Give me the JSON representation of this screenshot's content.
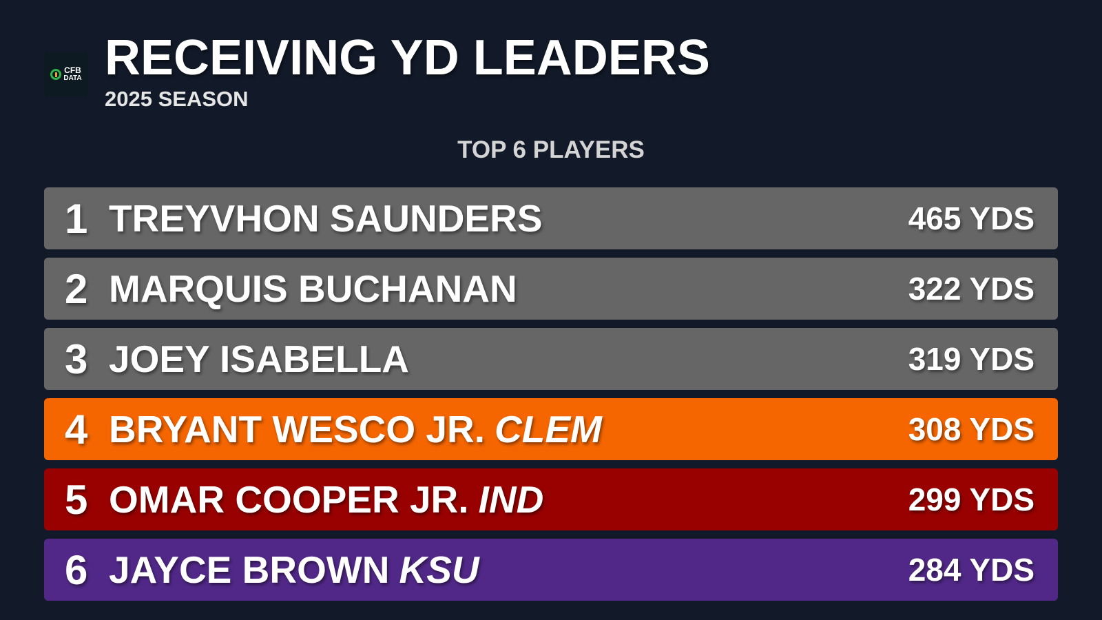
{
  "header": {
    "logo_text_line1": "CFB",
    "logo_text_line2": "DATA",
    "title": "RECEIVING YD LEADERS",
    "subtitle": "2025 SEASON"
  },
  "section_label": "TOP 6 PLAYERS",
  "players": [
    {
      "rank": "1",
      "name": "TREYVHON SAUNDERS",
      "team": "",
      "value": "465 YDS",
      "color": "#666666"
    },
    {
      "rank": "2",
      "name": "MARQUIS BUCHANAN",
      "team": "",
      "value": "322 YDS",
      "color": "#666666"
    },
    {
      "rank": "3",
      "name": "JOEY ISABELLA",
      "team": "",
      "value": "319 YDS",
      "color": "#666666"
    },
    {
      "rank": "4",
      "name": "BRYANT WESCO JR.",
      "team": "CLEM",
      "value": "308 YDS",
      "color": "#f56600"
    },
    {
      "rank": "5",
      "name": "OMAR COOPER JR.",
      "team": "IND",
      "value": "299 YDS",
      "color": "#990000"
    },
    {
      "rank": "6",
      "name": "JAYCE BROWN",
      "team": "KSU",
      "value": "284 YDS",
      "color": "#512888"
    }
  ]
}
